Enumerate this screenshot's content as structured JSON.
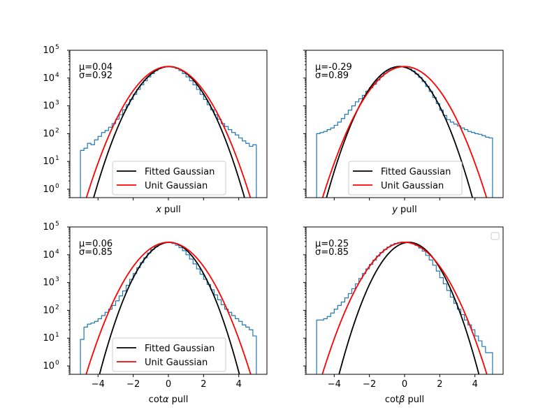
{
  "chart_data": [
    {
      "type": "line",
      "xlabel": "x pull",
      "xlabel_main": "x",
      "xlabel_suffix": " pull",
      "xlim": [
        -5.6,
        5.6
      ],
      "ylim": [
        0.5,
        100000
      ],
      "yscale": "log",
      "x_ticks": [
        -4,
        -2,
        0,
        2,
        4
      ],
      "show_x_tick_labels": false,
      "show_y_tick_labels": true,
      "annotation": {
        "mu": "μ=0.04",
        "sigma": "σ=0.92"
      },
      "legend": {
        "placement": "lower-center",
        "entries": [
          "Fitted Gaussian",
          "Unit Gaussian"
        ]
      },
      "fit": {
        "mu": 0.04,
        "sigma": 0.92
      },
      "series": [
        {
          "name": "Fitted Gaussian",
          "color": "#000000",
          "mu": 0.04,
          "sigma": 0.92,
          "amplitude": 26000
        },
        {
          "name": "Unit Gaussian",
          "color": "#ff0000",
          "mu": 0.0,
          "sigma": 1.0,
          "amplitude": 26000
        }
      ],
      "histogram": {
        "color": "#1f77b4",
        "bin_edges": [
          -5.0,
          -4.8,
          -4.6,
          -4.4,
          -4.2,
          -4.0,
          -3.8,
          -3.6,
          -3.4,
          -3.2,
          -3.0,
          -2.8,
          -2.6,
          -2.4,
          -2.2,
          -2.0,
          -1.8,
          -1.6,
          -1.4,
          -1.2,
          -1.0,
          -0.8,
          -0.6,
          -0.4,
          -0.2,
          0.0,
          0.2,
          0.4,
          0.6,
          0.8,
          1.0,
          1.2,
          1.4,
          1.6,
          1.8,
          2.0,
          2.2,
          2.4,
          2.6,
          2.8,
          3.0,
          3.2,
          3.4,
          3.6,
          3.8,
          4.0,
          4.2,
          4.4,
          4.6,
          4.8,
          5.0
        ],
        "counts": [
          25,
          30,
          45,
          40,
          60,
          80,
          110,
          130,
          170,
          230,
          330,
          480,
          720,
          1100,
          1700,
          2600,
          3900,
          5700,
          8000,
          11000,
          14500,
          18500,
          22000,
          24500,
          26000,
          26000,
          24500,
          22000,
          18500,
          14500,
          11000,
          8000,
          5700,
          3900,
          2600,
          1700,
          1100,
          720,
          480,
          330,
          230,
          180,
          140,
          110,
          90,
          70,
          55,
          45,
          35,
          40
        ]
      }
    },
    {
      "type": "line",
      "xlabel": "y pull",
      "xlabel_main": "y",
      "xlabel_suffix": " pull",
      "xlim": [
        -5.6,
        5.6
      ],
      "ylim": [
        0.5,
        100000
      ],
      "yscale": "log",
      "x_ticks": [
        -4,
        -2,
        0,
        2,
        4
      ],
      "show_x_tick_labels": false,
      "show_y_tick_labels": false,
      "annotation": {
        "mu": "μ=-0.29",
        "sigma": "σ=0.89"
      },
      "legend": {
        "placement": "lower-center",
        "entries": [
          "Fitted Gaussian",
          "Unit Gaussian"
        ]
      },
      "series": [
        {
          "name": "Fitted Gaussian",
          "color": "#000000",
          "mu": -0.29,
          "sigma": 0.89,
          "amplitude": 26000
        },
        {
          "name": "Unit Gaussian",
          "color": "#ff0000",
          "mu": 0.0,
          "sigma": 1.0,
          "amplitude": 26000
        }
      ],
      "histogram": {
        "color": "#1f77b4",
        "bin_edges": [
          -5.0,
          -4.8,
          -4.6,
          -4.4,
          -4.2,
          -4.0,
          -3.8,
          -3.6,
          -3.4,
          -3.2,
          -3.0,
          -2.8,
          -2.6,
          -2.4,
          -2.2,
          -2.0,
          -1.8,
          -1.6,
          -1.4,
          -1.2,
          -1.0,
          -0.8,
          -0.6,
          -0.4,
          -0.2,
          0.0,
          0.2,
          0.4,
          0.6,
          0.8,
          1.0,
          1.2,
          1.4,
          1.6,
          1.8,
          2.0,
          2.2,
          2.4,
          2.6,
          2.8,
          3.0,
          3.2,
          3.4,
          3.6,
          3.8,
          4.0,
          4.2,
          4.4,
          4.6,
          4.8,
          5.0
        ],
        "counts": [
          100,
          110,
          120,
          140,
          160,
          200,
          260,
          350,
          500,
          700,
          1000,
          1400,
          1800,
          2400,
          3400,
          4500,
          6000,
          8500,
          11500,
          15000,
          19000,
          22500,
          25000,
          26000,
          25500,
          24000,
          21500,
          18000,
          14000,
          10500,
          7500,
          5000,
          3300,
          2000,
          1200,
          700,
          450,
          320,
          260,
          220,
          190,
          160,
          140,
          120,
          110,
          100,
          95,
          85,
          75,
          70
        ]
      }
    },
    {
      "type": "line",
      "xlabel": "cotα pull",
      "xlabel_main": "cot",
      "xlabel_symbol": "α",
      "xlabel_suffix": " pull",
      "xlim": [
        -5.6,
        5.6
      ],
      "ylim": [
        0.5,
        100000
      ],
      "yscale": "log",
      "x_ticks": [
        -4,
        -2,
        0,
        2,
        4
      ],
      "show_x_tick_labels": true,
      "show_y_tick_labels": true,
      "annotation": {
        "mu": "μ=0.06",
        "sigma": "σ=0.85"
      },
      "legend": {
        "placement": "lower-center",
        "entries": [
          "Fitted Gaussian",
          "Unit Gaussian"
        ]
      },
      "series": [
        {
          "name": "Fitted Gaussian",
          "color": "#000000",
          "mu": 0.06,
          "sigma": 0.85,
          "amplitude": 28000
        },
        {
          "name": "Unit Gaussian",
          "color": "#ff0000",
          "mu": 0.0,
          "sigma": 1.0,
          "amplitude": 28000
        }
      ],
      "histogram": {
        "color": "#1f77b4",
        "bin_edges": [
          -5.0,
          -4.8,
          -4.6,
          -4.4,
          -4.2,
          -4.0,
          -3.8,
          -3.6,
          -3.4,
          -3.2,
          -3.0,
          -2.8,
          -2.6,
          -2.4,
          -2.2,
          -2.0,
          -1.8,
          -1.6,
          -1.4,
          -1.2,
          -1.0,
          -0.8,
          -0.6,
          -0.4,
          -0.2,
          0.0,
          0.2,
          0.4,
          0.6,
          0.8,
          1.0,
          1.2,
          1.4,
          1.6,
          1.8,
          2.0,
          2.2,
          2.4,
          2.6,
          2.8,
          3.0,
          3.2,
          3.4,
          3.6,
          3.8,
          4.0,
          4.2,
          4.4,
          4.6,
          4.8,
          5.0
        ],
        "counts": [
          9,
          25,
          32,
          35,
          40,
          50,
          65,
          85,
          110,
          150,
          220,
          330,
          500,
          800,
          1300,
          2100,
          3400,
          5200,
          7800,
          11500,
          15500,
          19500,
          23500,
          26500,
          28000,
          27500,
          25500,
          22000,
          18000,
          14000,
          10000,
          7000,
          4700,
          3100,
          2000,
          1300,
          850,
          550,
          360,
          240,
          160,
          110,
          85,
          65,
          50,
          40,
          30,
          25,
          20,
          12
        ]
      }
    },
    {
      "type": "line",
      "xlabel": "cotβ pull",
      "xlabel_main": "cot",
      "xlabel_symbol": "β",
      "xlabel_suffix": " pull",
      "xlim": [
        -5.6,
        5.6
      ],
      "ylim": [
        0.5,
        100000
      ],
      "yscale": "log",
      "x_ticks": [
        -4,
        -2,
        0,
        2,
        4
      ],
      "show_x_tick_labels": true,
      "show_y_tick_labels": false,
      "annotation": {
        "mu": "μ=0.25",
        "sigma": "σ=0.85"
      },
      "legend": {
        "placement": "upper-right",
        "entries": []
      },
      "series": [
        {
          "name": "",
          "color": "#000000",
          "mu": 0.25,
          "sigma": 0.85,
          "amplitude": 28000
        },
        {
          "name": "",
          "color": "#ff0000",
          "mu": 0.0,
          "sigma": 1.0,
          "amplitude": 28000
        }
      ],
      "histogram": {
        "color": "#1f77b4",
        "bin_edges": [
          -5.0,
          -4.8,
          -4.6,
          -4.4,
          -4.2,
          -4.0,
          -3.8,
          -3.6,
          -3.4,
          -3.2,
          -3.0,
          -2.8,
          -2.6,
          -2.4,
          -2.2,
          -2.0,
          -1.8,
          -1.6,
          -1.4,
          -1.2,
          -1.0,
          -0.8,
          -0.6,
          -0.4,
          -0.2,
          0.0,
          0.2,
          0.4,
          0.6,
          0.8,
          1.0,
          1.2,
          1.4,
          1.6,
          1.8,
          2.0,
          2.2,
          2.4,
          2.6,
          2.8,
          3.0,
          3.2,
          3.4,
          3.6,
          3.8,
          4.0,
          4.2,
          4.4,
          4.6,
          4.8,
          5.0
        ],
        "counts": [
          45,
          45,
          50,
          60,
          80,
          110,
          150,
          200,
          280,
          400,
          600,
          900,
          1400,
          2100,
          3100,
          4500,
          6400,
          9000,
          12000,
          15500,
          19000,
          22500,
          25500,
          27500,
          28500,
          28500,
          27500,
          25000,
          21500,
          17500,
          13500,
          9500,
          6500,
          4200,
          2600,
          1500,
          900,
          520,
          300,
          180,
          110,
          70,
          45,
          30,
          20,
          12,
          8,
          5,
          3,
          3
        ]
      }
    }
  ]
}
